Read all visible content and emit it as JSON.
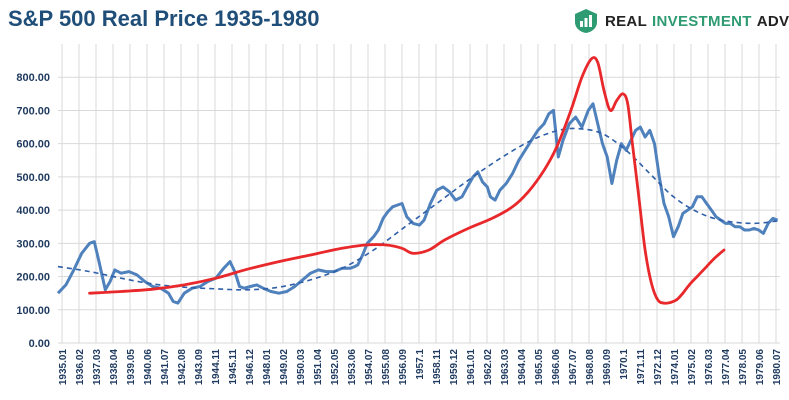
{
  "header": {
    "title": "S&P 500 Real Price 1935-1980",
    "brand_real": "REAL",
    "brand_investment": "INVESTMENT",
    "brand_advice": "ADVICE"
  },
  "colors": {
    "price_line": "#4f81bd",
    "trend_line": "#2e5fa8",
    "overlay_curve": "#e8282b",
    "grid": "#d9d9d9",
    "title": "#1f4e79",
    "brand_green": "#2e9b73"
  },
  "chart_data": {
    "type": "line",
    "title": "S&P 500 Real Price 1935-1980",
    "xlabel": "",
    "ylabel": "",
    "ylim": [
      0,
      900
    ],
    "grid": true,
    "y_ticks": [
      "0.00",
      "100.00",
      "200.00",
      "300.00",
      "400.00",
      "500.00",
      "600.00",
      "700.00",
      "800.00"
    ],
    "x_ticks": [
      "1935.01",
      "1936.02",
      "1937.03",
      "1938.04",
      "1939.05",
      "1940.06",
      "1941.07",
      "1942.08",
      "1943.09",
      "1944.11",
      "1945.11",
      "1946.12",
      "1948.01",
      "1949.02",
      "1950.03",
      "1951.04",
      "1952.05",
      "1953.06",
      "1954.07",
      "1955.08",
      "1956.09",
      "1957.1",
      "1958.11",
      "1959.12",
      "1961.01",
      "1962.02",
      "1963.03",
      "1964.04",
      "1965.05",
      "1966.06",
      "1967.07",
      "1968.08",
      "1969.09",
      "1970.1",
      "1971.11",
      "1972.12",
      "1974.01",
      "1975.02",
      "1976.03",
      "1977.04",
      "1978.05",
      "1979.06",
      "1980.07"
    ],
    "series": [
      {
        "kind": "price",
        "x": [
          1935.0,
          1935.5,
          1936.0,
          1936.5,
          1937.0,
          1937.3,
          1937.6,
          1938.0,
          1938.3,
          1938.6,
          1939.0,
          1939.5,
          1940.0,
          1940.5,
          1941.0,
          1941.5,
          1942.0,
          1942.3,
          1942.6,
          1943.0,
          1943.5,
          1944.0,
          1944.5,
          1945.0,
          1945.5,
          1945.9,
          1946.2,
          1946.5,
          1946.8,
          1947.2,
          1947.6,
          1948.0,
          1948.5,
          1949.0,
          1949.5,
          1950.0,
          1950.5,
          1951.0,
          1951.5,
          1952.0,
          1952.5,
          1953.0,
          1953.5,
          1953.8,
          1954.0,
          1954.3,
          1954.6,
          1955.0,
          1955.3,
          1955.6,
          1955.9,
          1956.2,
          1956.5,
          1956.8,
          1957.1,
          1957.5,
          1957.9,
          1958.2,
          1958.6,
          1959.0,
          1959.4,
          1959.8,
          1960.2,
          1960.6,
          1961.0,
          1961.3,
          1961.6,
          1961.9,
          1962.2,
          1962.4,
          1962.7,
          1963.0,
          1963.4,
          1963.8,
          1964.2,
          1964.6,
          1965.0,
          1965.4,
          1965.8,
          1966.1,
          1966.4,
          1966.7,
          1967.0,
          1967.4,
          1967.8,
          1968.2,
          1968.6,
          1968.9,
          1969.2,
          1969.5,
          1969.8,
          1970.1,
          1970.4,
          1970.7,
          1971.0,
          1971.3,
          1971.6,
          1971.9,
          1972.2,
          1972.5,
          1972.8,
          1973.1,
          1973.4,
          1973.7,
          1974.0,
          1974.3,
          1974.6,
          1974.9,
          1975.2,
          1975.5,
          1975.8,
          1976.1,
          1976.4,
          1976.7,
          1977.0,
          1977.3,
          1977.6,
          1977.9,
          1978.2,
          1978.5,
          1978.8,
          1979.1,
          1979.4,
          1979.7,
          1980.0,
          1980.3,
          1980.6
        ],
        "values": [
          150,
          175,
          220,
          270,
          300,
          305,
          245,
          160,
          185,
          220,
          210,
          215,
          205,
          185,
          170,
          165,
          150,
          125,
          120,
          150,
          165,
          170,
          185,
          195,
          225,
          245,
          215,
          170,
          165,
          170,
          175,
          165,
          155,
          150,
          155,
          170,
          190,
          210,
          220,
          215,
          215,
          225,
          225,
          230,
          235,
          265,
          300,
          320,
          340,
          375,
          395,
          410,
          415,
          420,
          380,
          360,
          355,
          370,
          420,
          460,
          470,
          455,
          430,
          440,
          475,
          500,
          515,
          485,
          470,
          440,
          430,
          460,
          480,
          510,
          550,
          580,
          610,
          640,
          660,
          690,
          700,
          560,
          610,
          660,
          680,
          650,
          700,
          720,
          660,
          600,
          560,
          480,
          550,
          600,
          580,
          610,
          640,
          650,
          620,
          640,
          600,
          500,
          420,
          380,
          320,
          350,
          390,
          400,
          410,
          440,
          440,
          420,
          400,
          380,
          370,
          360,
          360,
          350,
          350,
          340,
          340,
          345,
          340,
          330,
          360,
          375,
          370
        ]
      },
      {
        "kind": "trend",
        "x": [
          1935.0,
          1937.0,
          1939.0,
          1941.0,
          1943.0,
          1945.0,
          1947.0,
          1949.0,
          1951.0,
          1953.0,
          1955.0,
          1957.0,
          1959.0,
          1961.0,
          1963.0,
          1965.0,
          1966.7,
          1968.0,
          1969.5,
          1971.0,
          1972.5,
          1974.0,
          1975.5,
          1977.0,
          1979.0,
          1980.7
        ],
        "values": [
          230,
          215,
          195,
          178,
          168,
          163,
          160,
          168,
          190,
          225,
          280,
          350,
          420,
          490,
          555,
          610,
          640,
          645,
          630,
          580,
          510,
          440,
          395,
          370,
          360,
          368
        ]
      },
      {
        "kind": "overlay",
        "x": [
          1937.0,
          1939.0,
          1941.0,
          1943.0,
          1945.0,
          1947.0,
          1949.0,
          1951.0,
          1953.0,
          1954.5,
          1955.8,
          1956.8,
          1957.5,
          1958.5,
          1959.5,
          1961.0,
          1962.5,
          1963.8,
          1964.8,
          1965.8,
          1966.6,
          1967.5,
          1968.2,
          1968.8,
          1969.2,
          1969.6,
          1970.0,
          1970.4,
          1970.8,
          1971.1,
          1971.4,
          1971.8,
          1972.2,
          1972.6,
          1973.0,
          1973.4,
          1973.8,
          1974.2,
          1974.6,
          1975.0,
          1975.5,
          1976.0,
          1976.6,
          1977.2
        ],
        "values": [
          150,
          155,
          162,
          175,
          195,
          222,
          245,
          265,
          285,
          295,
          295,
          285,
          270,
          280,
          310,
          345,
          375,
          410,
          455,
          520,
          590,
          700,
          800,
          855,
          845,
          760,
          700,
          730,
          750,
          720,
          600,
          440,
          280,
          180,
          130,
          120,
          122,
          130,
          150,
          175,
          200,
          225,
          255,
          280
        ]
      }
    ]
  }
}
